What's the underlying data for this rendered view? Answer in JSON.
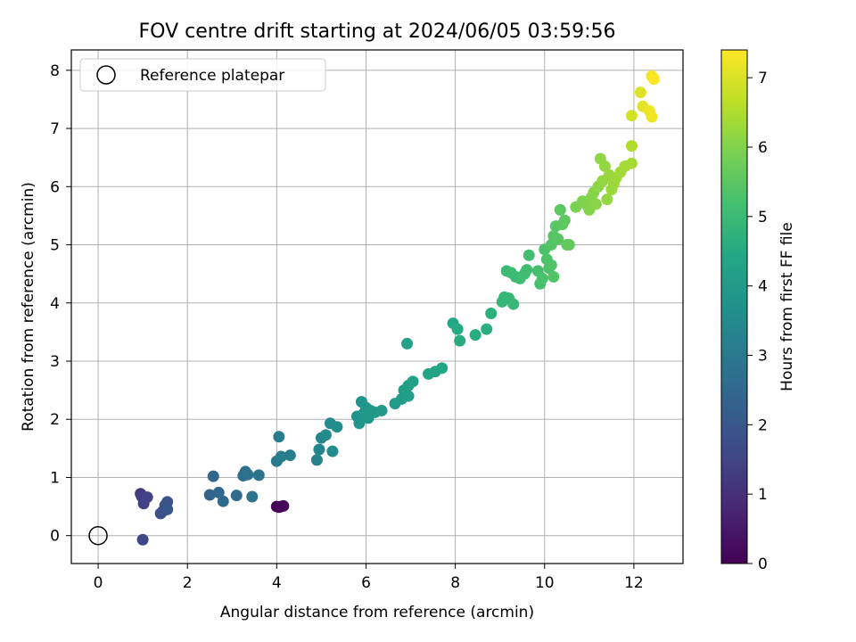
{
  "chart_data": {
    "type": "scatter",
    "title": "FOV centre drift starting at 2024/06/05 03:59:56",
    "xlabel": "Angular distance from reference (arcmin)",
    "ylabel": "Rotation from reference (arcmin)",
    "xlim": [
      -0.6,
      13.1
    ],
    "ylim": [
      -0.48,
      8.35
    ],
    "xticks": [
      "0",
      "2",
      "4",
      "6",
      "8",
      "10",
      "12"
    ],
    "yticks": [
      "0",
      "1",
      "2",
      "3",
      "4",
      "5",
      "6",
      "7",
      "8"
    ],
    "grid": true,
    "legend": {
      "position": "top-left",
      "entries": [
        "Reference platepar"
      ]
    },
    "reference_point": {
      "x": 0,
      "y": 0
    },
    "colorbar": {
      "label": "Hours from first FF file",
      "range": [
        0,
        7.4
      ],
      "ticks": [
        "0",
        "1",
        "2",
        "3",
        "4",
        "5",
        "6",
        "7"
      ],
      "colormap": "viridis"
    },
    "points": [
      {
        "x": 4.0,
        "y": 0.5,
        "c": 0.0
      },
      {
        "x": 4.05,
        "y": 0.49,
        "c": 0.05
      },
      {
        "x": 4.1,
        "y": 0.5,
        "c": 0.1
      },
      {
        "x": 4.15,
        "y": 0.51,
        "c": 0.15
      },
      {
        "x": 0.95,
        "y": 0.72,
        "c": 1.2
      },
      {
        "x": 0.98,
        "y": 0.67,
        "c": 1.3
      },
      {
        "x": 1.02,
        "y": 0.55,
        "c": 1.4
      },
      {
        "x": 1.1,
        "y": 0.66,
        "c": 1.45
      },
      {
        "x": 1.0,
        "y": -0.07,
        "c": 1.6
      },
      {
        "x": 1.4,
        "y": 0.38,
        "c": 1.75
      },
      {
        "x": 1.45,
        "y": 0.42,
        "c": 1.8
      },
      {
        "x": 1.5,
        "y": 0.52,
        "c": 1.85
      },
      {
        "x": 1.55,
        "y": 0.58,
        "c": 1.9
      },
      {
        "x": 1.55,
        "y": 0.45,
        "c": 1.95
      },
      {
        "x": 2.5,
        "y": 0.7,
        "c": 2.4
      },
      {
        "x": 2.58,
        "y": 1.02,
        "c": 2.45
      },
      {
        "x": 2.7,
        "y": 0.74,
        "c": 2.5
      },
      {
        "x": 2.8,
        "y": 0.59,
        "c": 2.55
      },
      {
        "x": 3.1,
        "y": 0.69,
        "c": 2.6
      },
      {
        "x": 3.25,
        "y": 1.03,
        "c": 2.65
      },
      {
        "x": 3.3,
        "y": 1.1,
        "c": 2.7
      },
      {
        "x": 3.35,
        "y": 1.05,
        "c": 2.75
      },
      {
        "x": 3.45,
        "y": 0.67,
        "c": 2.8
      },
      {
        "x": 3.6,
        "y": 1.04,
        "c": 2.85
      },
      {
        "x": 4.0,
        "y": 1.28,
        "c": 3.0
      },
      {
        "x": 4.05,
        "y": 1.7,
        "c": 3.05
      },
      {
        "x": 4.1,
        "y": 1.36,
        "c": 3.1
      },
      {
        "x": 4.3,
        "y": 1.38,
        "c": 3.15
      },
      {
        "x": 4.9,
        "y": 1.3,
        "c": 3.3
      },
      {
        "x": 4.95,
        "y": 1.48,
        "c": 3.35
      },
      {
        "x": 5.0,
        "y": 1.68,
        "c": 3.4
      },
      {
        "x": 5.1,
        "y": 1.73,
        "c": 3.45
      },
      {
        "x": 5.2,
        "y": 1.93,
        "c": 3.5
      },
      {
        "x": 5.25,
        "y": 1.45,
        "c": 3.55
      },
      {
        "x": 5.35,
        "y": 1.87,
        "c": 3.6
      },
      {
        "x": 5.8,
        "y": 2.05,
        "c": 3.75
      },
      {
        "x": 5.85,
        "y": 1.93,
        "c": 3.8
      },
      {
        "x": 5.9,
        "y": 2.3,
        "c": 3.82
      },
      {
        "x": 5.95,
        "y": 2.1,
        "c": 3.85
      },
      {
        "x": 6.0,
        "y": 2.2,
        "c": 3.88
      },
      {
        "x": 6.05,
        "y": 2.02,
        "c": 3.9
      },
      {
        "x": 6.1,
        "y": 2.15,
        "c": 3.93
      },
      {
        "x": 6.2,
        "y": 2.12,
        "c": 3.95
      },
      {
        "x": 6.35,
        "y": 2.15,
        "c": 4.0
      },
      {
        "x": 6.65,
        "y": 2.27,
        "c": 4.05
      },
      {
        "x": 6.8,
        "y": 2.35,
        "c": 4.1
      },
      {
        "x": 6.85,
        "y": 2.5,
        "c": 4.12
      },
      {
        "x": 6.95,
        "y": 2.4,
        "c": 4.15
      },
      {
        "x": 6.95,
        "y": 2.58,
        "c": 4.18
      },
      {
        "x": 7.05,
        "y": 2.65,
        "c": 4.2
      },
      {
        "x": 6.92,
        "y": 3.3,
        "c": 4.22
      },
      {
        "x": 7.4,
        "y": 2.78,
        "c": 4.3
      },
      {
        "x": 7.55,
        "y": 2.82,
        "c": 4.35
      },
      {
        "x": 7.7,
        "y": 2.88,
        "c": 4.4
      },
      {
        "x": 7.95,
        "y": 3.65,
        "c": 4.45
      },
      {
        "x": 8.05,
        "y": 3.55,
        "c": 4.5
      },
      {
        "x": 8.1,
        "y": 3.35,
        "c": 4.55
      },
      {
        "x": 8.45,
        "y": 3.45,
        "c": 4.6
      },
      {
        "x": 8.7,
        "y": 3.55,
        "c": 4.65
      },
      {
        "x": 8.8,
        "y": 3.82,
        "c": 4.7
      },
      {
        "x": 9.05,
        "y": 4.02,
        "c": 4.85
      },
      {
        "x": 9.1,
        "y": 4.1,
        "c": 4.88
      },
      {
        "x": 9.2,
        "y": 4.08,
        "c": 4.9
      },
      {
        "x": 9.3,
        "y": 3.98,
        "c": 4.92
      },
      {
        "x": 9.15,
        "y": 4.55,
        "c": 5.0
      },
      {
        "x": 9.25,
        "y": 4.52,
        "c": 5.02
      },
      {
        "x": 9.35,
        "y": 4.45,
        "c": 5.05
      },
      {
        "x": 9.45,
        "y": 4.42,
        "c": 5.07
      },
      {
        "x": 9.55,
        "y": 4.5,
        "c": 5.1
      },
      {
        "x": 9.6,
        "y": 4.57,
        "c": 5.12
      },
      {
        "x": 9.65,
        "y": 4.82,
        "c": 5.15
      },
      {
        "x": 9.85,
        "y": 4.55,
        "c": 5.2
      },
      {
        "x": 9.9,
        "y": 4.33,
        "c": 5.22
      },
      {
        "x": 9.95,
        "y": 4.42,
        "c": 5.25
      },
      {
        "x": 10.0,
        "y": 4.92,
        "c": 5.27
      },
      {
        "x": 10.05,
        "y": 4.75,
        "c": 5.3
      },
      {
        "x": 10.1,
        "y": 4.6,
        "c": 5.32
      },
      {
        "x": 10.15,
        "y": 4.65,
        "c": 5.35
      },
      {
        "x": 10.2,
        "y": 4.45,
        "c": 5.37
      },
      {
        "x": 10.15,
        "y": 5.0,
        "c": 5.4
      },
      {
        "x": 10.2,
        "y": 5.15,
        "c": 5.42
      },
      {
        "x": 10.25,
        "y": 5.32,
        "c": 5.45
      },
      {
        "x": 10.3,
        "y": 5.1,
        "c": 5.47
      },
      {
        "x": 10.35,
        "y": 5.6,
        "c": 5.5
      },
      {
        "x": 10.4,
        "y": 5.35,
        "c": 5.52
      },
      {
        "x": 10.45,
        "y": 5.42,
        "c": 5.55
      },
      {
        "x": 10.5,
        "y": 5.0,
        "c": 5.57
      },
      {
        "x": 10.55,
        "y": 5.0,
        "c": 5.6
      },
      {
        "x": 10.7,
        "y": 5.65,
        "c": 5.9
      },
      {
        "x": 10.85,
        "y": 5.75,
        "c": 5.95
      },
      {
        "x": 10.95,
        "y": 5.68,
        "c": 6.0
      },
      {
        "x": 11.0,
        "y": 5.6,
        "c": 6.02
      },
      {
        "x": 11.05,
        "y": 5.82,
        "c": 6.05
      },
      {
        "x": 11.1,
        "y": 5.9,
        "c": 6.08
      },
      {
        "x": 11.15,
        "y": 5.7,
        "c": 6.1
      },
      {
        "x": 11.2,
        "y": 6.0,
        "c": 6.12
      },
      {
        "x": 11.25,
        "y": 6.48,
        "c": 6.15
      },
      {
        "x": 11.3,
        "y": 6.1,
        "c": 6.18
      },
      {
        "x": 11.35,
        "y": 6.35,
        "c": 6.2
      },
      {
        "x": 11.4,
        "y": 5.78,
        "c": 6.22
      },
      {
        "x": 11.45,
        "y": 6.2,
        "c": 6.25
      },
      {
        "x": 11.5,
        "y": 5.95,
        "c": 6.28
      },
      {
        "x": 11.55,
        "y": 6.05,
        "c": 6.3
      },
      {
        "x": 11.6,
        "y": 6.15,
        "c": 6.32
      },
      {
        "x": 11.7,
        "y": 6.25,
        "c": 6.35
      },
      {
        "x": 11.8,
        "y": 6.35,
        "c": 6.38
      },
      {
        "x": 11.95,
        "y": 6.4,
        "c": 6.42
      },
      {
        "x": 11.95,
        "y": 6.7,
        "c": 6.5
      },
      {
        "x": 11.95,
        "y": 7.22,
        "c": 6.9
      },
      {
        "x": 12.15,
        "y": 7.62,
        "c": 7.05
      },
      {
        "x": 12.2,
        "y": 7.38,
        "c": 7.1
      },
      {
        "x": 12.35,
        "y": 7.3,
        "c": 7.2
      },
      {
        "x": 12.4,
        "y": 7.2,
        "c": 7.25
      },
      {
        "x": 12.4,
        "y": 7.9,
        "c": 7.3
      },
      {
        "x": 12.45,
        "y": 7.85,
        "c": 7.35
      }
    ]
  }
}
